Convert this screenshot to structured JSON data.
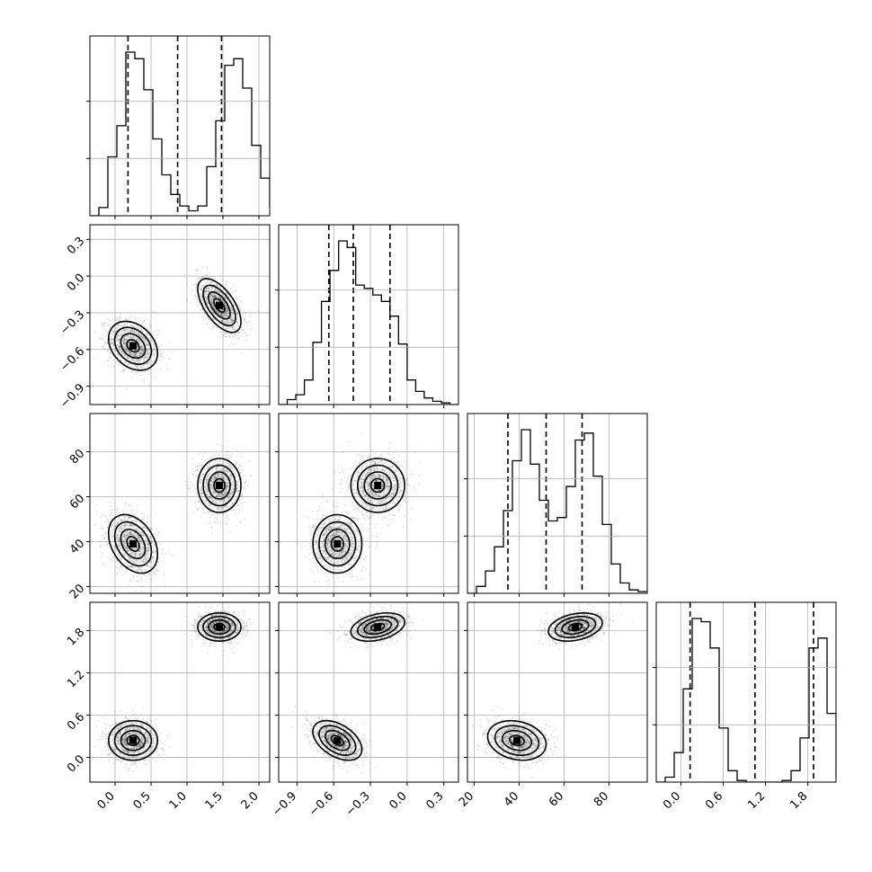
{
  "chart_data": {
    "type": "corner",
    "grid": true,
    "parameters": [
      {
        "range": [
          -0.35,
          2.15
        ],
        "ticks": [
          0.0,
          0.5,
          1.0,
          1.5,
          2.0
        ],
        "tick_labels": [
          "0.0",
          "0.5",
          "1.0",
          "1.5",
          "2.0"
        ],
        "quantiles": [
          0.18,
          0.87,
          1.48
        ],
        "histogram": {
          "edges_start": -0.35,
          "bin_width": 0.125,
          "counts": [
            0,
            5,
            36,
            55,
            100,
            96,
            77,
            47,
            25,
            13,
            6,
            3,
            6,
            30,
            58,
            92,
            96,
            78,
            43,
            23,
            6
          ]
        },
        "modes": [
          {
            "mean": [
              0.25,
              -0.57,
              39,
              0.24
            ],
            "sd": [
              0.17,
              0.1,
              6.5,
              0.14
            ],
            "weight": 0.5
          },
          {
            "mean": [
              1.45,
              -0.24,
              65,
              1.85
            ],
            "sd": [
              0.15,
              0.11,
              6.0,
              0.1
            ],
            "weight": 0.5
          }
        ]
      },
      {
        "range": [
          -1.05,
          0.42
        ],
        "ticks": [
          -0.9,
          -0.6,
          -0.3,
          0.0,
          0.3
        ],
        "tick_labels": [
          "−0.9",
          "−0.6",
          "−0.3",
          "0.0",
          "0.3"
        ],
        "quantiles": [
          -0.64,
          -0.44,
          -0.14
        ],
        "histogram": {
          "edges_start": -1.05,
          "bin_width": 0.07,
          "counts": [
            0,
            3,
            6,
            15,
            38,
            63,
            82,
            100,
            96,
            73,
            71,
            67,
            63,
            54,
            37,
            15,
            8,
            4,
            2,
            1,
            0
          ]
        }
      },
      {
        "range": [
          17,
          97
        ],
        "ticks": [
          20,
          40,
          60,
          80
        ],
        "tick_labels": [
          "20",
          "40",
          "60",
          "80"
        ],
        "quantiles": [
          35,
          52,
          68
        ],
        "histogram": {
          "edges_start": 17,
          "bin_width": 4,
          "counts": [
            0,
            4,
            13,
            27,
            48,
            77,
            95,
            75,
            54,
            42,
            44,
            62,
            89,
            93,
            68,
            40,
            17,
            6,
            2,
            1
          ]
        }
      },
      {
        "range": [
          -0.35,
          2.2
        ],
        "ticks": [
          0.0,
          0.6,
          1.2,
          1.8
        ],
        "tick_labels": [
          "0.0",
          "0.6",
          "1.2",
          "1.8"
        ],
        "quantiles": [
          0.13,
          1.05,
          1.88
        ],
        "histogram": {
          "edges_start": -0.35,
          "bin_width": 0.1275,
          "counts": [
            0,
            3,
            18,
            57,
            100,
            98,
            82,
            33,
            7,
            1,
            0,
            0,
            0,
            0,
            1,
            7,
            27,
            82,
            88,
            42,
            4
          ]
        }
      }
    ]
  }
}
